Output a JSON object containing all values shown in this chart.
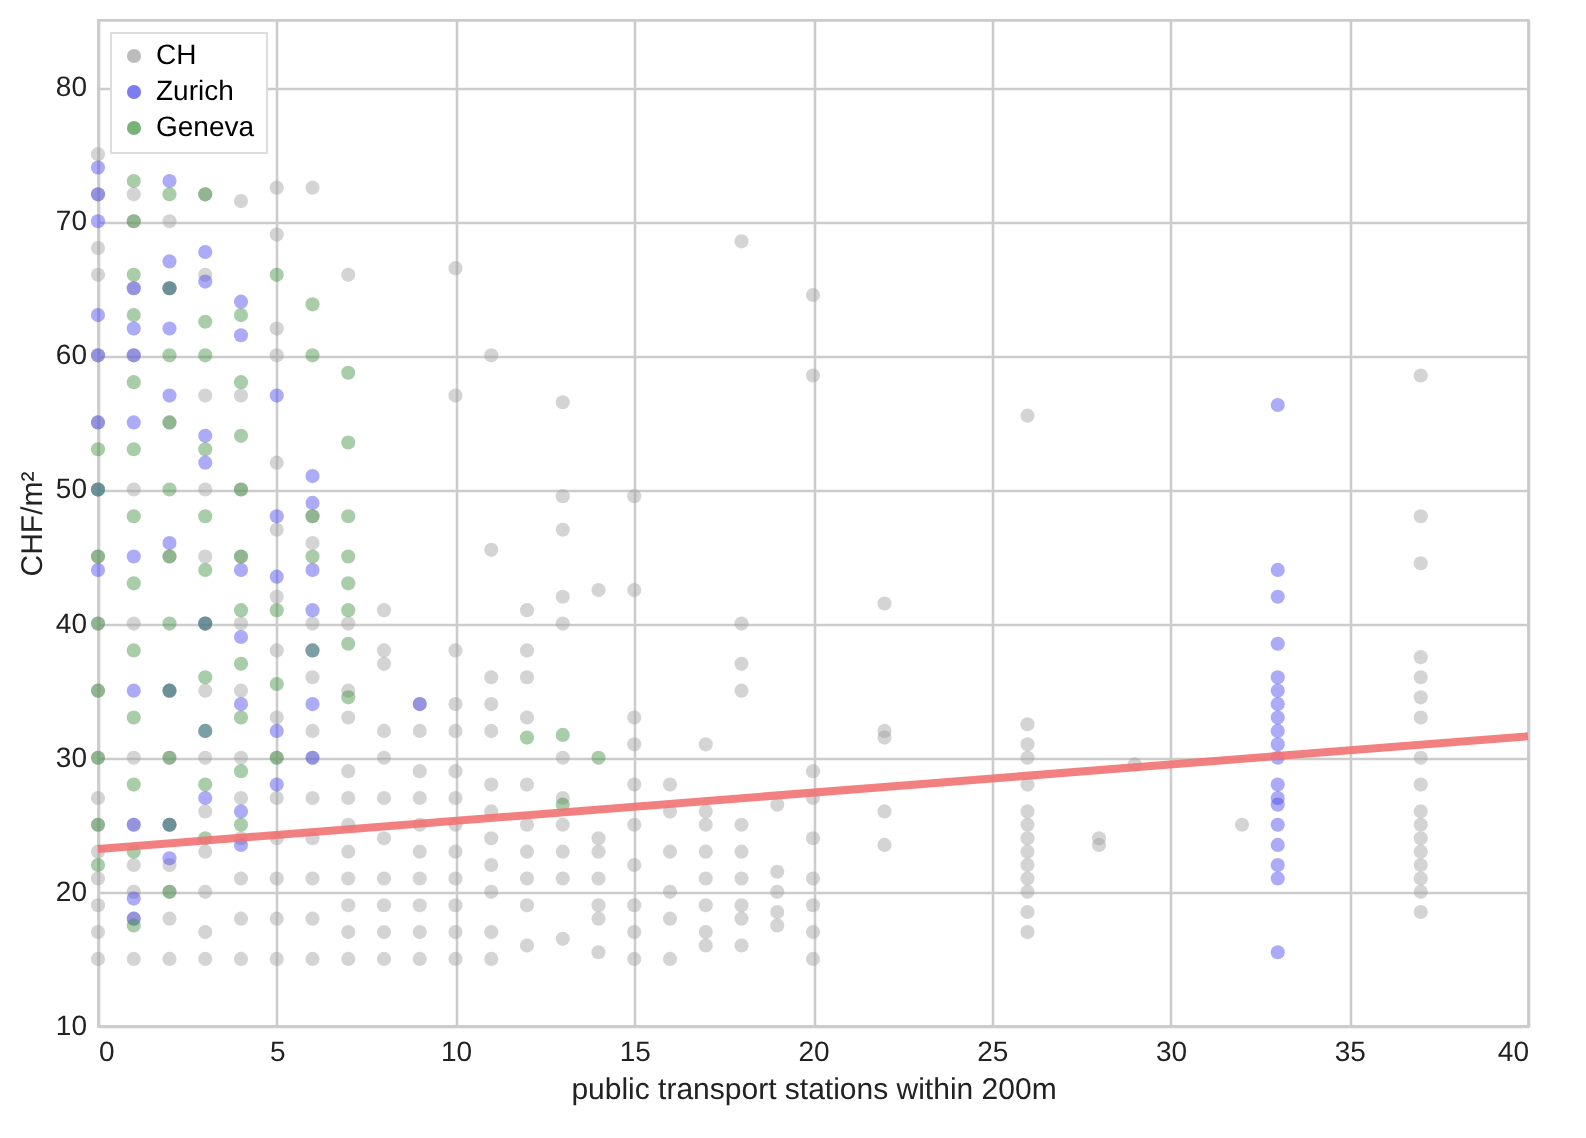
{
  "chart_data": {
    "type": "scatter",
    "xlabel": "public transport stations within 200m",
    "ylabel": "CHF/m²",
    "xlim": [
      0,
      40
    ],
    "ylim": [
      10,
      85
    ],
    "xticks": [
      0,
      5,
      10,
      15,
      20,
      25,
      30,
      35,
      40
    ],
    "yticks": [
      10,
      20,
      30,
      40,
      50,
      60,
      70,
      80
    ],
    "grid": true,
    "legend": "top left",
    "marker": "circle",
    "series": [
      {
        "name": "CH",
        "color": "#a0a0a0",
        "x": [
          0,
          0,
          0,
          0,
          0,
          0,
          0,
          0,
          0,
          0,
          0,
          0,
          0,
          0,
          0,
          0,
          0,
          0,
          1,
          1,
          1,
          1,
          1,
          1,
          1,
          1,
          1,
          1,
          1,
          1,
          2,
          2,
          2,
          2,
          2,
          2,
          2,
          2,
          2,
          2,
          2,
          3,
          3,
          3,
          3,
          3,
          3,
          3,
          3,
          3,
          3,
          3,
          3,
          3,
          4,
          4,
          4,
          4,
          4,
          4,
          4,
          4,
          4,
          4,
          4,
          4,
          5,
          5,
          5,
          5,
          5,
          5,
          5,
          5,
          5,
          5,
          5,
          5,
          5,
          5,
          5,
          6,
          6,
          6,
          6,
          6,
          6,
          6,
          6,
          6,
          6,
          6,
          6,
          7,
          7,
          7,
          7,
          7,
          7,
          7,
          7,
          7,
          7,
          7,
          7,
          8,
          8,
          8,
          8,
          8,
          8,
          8,
          8,
          8,
          8,
          8,
          9,
          9,
          9,
          9,
          9,
          9,
          9,
          9,
          9,
          9,
          10,
          10,
          10,
          10,
          10,
          10,
          10,
          10,
          10,
          10,
          10,
          10,
          10,
          11,
          11,
          11,
          11,
          11,
          11,
          11,
          11,
          11,
          11,
          11,
          11,
          12,
          12,
          12,
          12,
          12,
          12,
          12,
          12,
          12,
          12,
          13,
          13,
          13,
          13,
          13,
          13,
          13,
          13,
          13,
          13,
          13,
          14,
          14,
          14,
          14,
          14,
          14,
          14,
          15,
          15,
          15,
          15,
          15,
          15,
          15,
          15,
          15,
          15,
          16,
          16,
          16,
          16,
          16,
          16,
          17,
          17,
          17,
          17,
          17,
          17,
          17,
          17,
          18,
          18,
          18,
          18,
          18,
          18,
          18,
          18,
          18,
          18,
          19,
          19,
          19,
          19,
          19,
          20,
          20,
          20,
          20,
          20,
          20,
          20,
          20,
          20,
          22,
          22,
          22,
          22,
          22,
          26,
          26,
          26,
          26,
          26,
          26,
          26,
          26,
          26,
          26,
          26,
          26,
          26,
          26,
          28,
          28,
          29,
          32,
          37,
          37,
          37,
          37,
          37,
          37,
          37,
          37,
          37,
          37,
          37,
          37,
          37,
          37,
          37,
          37,
          37
        ],
        "values": [
          15,
          17,
          19,
          21,
          23,
          25,
          27,
          30,
          35,
          40,
          45,
          50,
          55,
          60,
          66,
          68,
          72,
          75,
          15,
          18,
          20,
          22,
          25,
          30,
          40,
          50,
          60,
          65,
          70,
          72,
          15,
          18,
          20,
          22,
          25,
          30,
          35,
          45,
          55,
          65,
          70,
          15,
          17,
          20,
          23,
          26,
          30,
          35,
          40,
          45,
          50,
          57,
          66,
          72,
          15,
          18,
          21,
          24,
          27,
          30,
          35,
          40,
          45,
          50,
          57,
          71.5,
          15,
          18,
          21,
          24,
          27,
          30,
          33,
          38,
          42,
          47,
          52,
          60,
          62,
          69,
          72.5,
          15,
          18,
          21,
          24,
          27,
          30,
          32,
          36,
          40,
          46,
          48,
          72.5,
          15,
          17,
          19,
          21,
          23,
          25,
          27,
          29,
          33,
          35,
          40,
          66,
          15,
          17,
          19,
          21,
          24,
          27,
          30,
          32,
          37,
          38,
          41,
          15,
          17,
          19,
          21,
          23,
          25,
          27,
          29,
          32,
          34,
          15,
          17,
          19,
          21,
          23,
          25,
          27,
          29,
          32,
          34,
          38,
          57,
          66.5,
          15,
          17,
          20,
          22,
          24,
          26,
          28,
          32,
          34,
          36,
          45.5,
          60,
          16,
          19,
          21,
          23,
          25,
          28,
          33,
          36,
          38,
          41,
          16.5,
          21,
          23,
          25,
          27,
          30,
          40,
          42,
          47,
          49.5,
          56.5,
          15.5,
          18,
          19,
          21,
          23,
          24,
          42.5,
          15,
          17,
          19,
          22,
          25,
          28,
          31,
          33,
          42.5,
          49.5,
          15,
          18,
          20,
          23,
          26,
          28,
          16,
          17,
          19,
          21,
          23,
          25,
          26,
          31,
          16,
          18,
          19,
          21,
          23,
          25,
          35,
          37,
          40,
          68.5,
          17.5,
          18.5,
          20,
          21.5,
          26.5,
          15,
          17,
          19,
          21,
          24,
          27,
          29,
          58.5,
          64.5,
          23.5,
          26,
          31.5,
          32,
          41.5,
          17,
          18.5,
          20,
          21,
          22,
          23,
          24,
          25,
          26,
          28,
          30,
          31,
          32.5,
          55.5,
          23.5,
          24,
          29.5,
          25,
          18.5,
          20,
          21,
          22,
          23,
          24,
          25,
          26,
          28,
          30,
          33,
          34.5,
          36,
          37.5,
          44.5,
          48,
          58.5
        ]
      },
      {
        "name": "Zurich",
        "color": "#4545ee",
        "x": [
          0,
          0,
          0,
          0,
          0,
          0,
          0,
          0,
          1,
          1,
          1,
          1,
          1,
          1,
          1,
          1,
          1,
          2,
          2,
          2,
          2,
          2,
          2,
          2,
          2,
          2,
          3,
          3,
          3,
          3,
          3,
          3,
          3,
          4,
          4,
          4,
          4,
          4,
          4,
          4,
          5,
          5,
          5,
          5,
          5,
          6,
          6,
          6,
          6,
          6,
          6,
          6,
          9,
          33,
          33,
          33,
          33,
          33,
          33,
          33,
          33,
          33,
          33,
          33,
          33,
          33,
          33,
          33,
          33,
          33,
          33,
          33
        ],
        "values": [
          44,
          50,
          55,
          60,
          63,
          70,
          72,
          74,
          18,
          19.5,
          25,
          35,
          45,
          55,
          60,
          62,
          65,
          22.5,
          25,
          35,
          46,
          57,
          62,
          65,
          67,
          73,
          27,
          32,
          40,
          52,
          54,
          65.5,
          67.7,
          23.5,
          26,
          34,
          39,
          44,
          61.5,
          64,
          28,
          32,
          43.5,
          48,
          57,
          30,
          34,
          38,
          41,
          44,
          49,
          51,
          34,
          15.5,
          21,
          22,
          23.5,
          25,
          26.5,
          27,
          28,
          30,
          31,
          32,
          33,
          34,
          35,
          36,
          38.5,
          42,
          44,
          56.3
        ]
      },
      {
        "name": "Geneva",
        "color": "#3f913f",
        "x": [
          0,
          0,
          0,
          0,
          0,
          0,
          0,
          0,
          1,
          1,
          1,
          1,
          1,
          1,
          1,
          1,
          1,
          1,
          1,
          1,
          1,
          2,
          2,
          2,
          2,
          2,
          2,
          2,
          2,
          2,
          2,
          2,
          3,
          3,
          3,
          3,
          3,
          3,
          3,
          3,
          3,
          3,
          3,
          4,
          4,
          4,
          4,
          4,
          4,
          4,
          4,
          4,
          4,
          5,
          5,
          5,
          5,
          6,
          6,
          6,
          6,
          6,
          7,
          7,
          7,
          7,
          7,
          7,
          7,
          7,
          12,
          13,
          13,
          14
        ],
        "values": [
          22,
          25,
          30,
          35,
          40,
          45,
          50,
          53,
          17.5,
          23,
          28,
          33,
          38,
          43,
          48,
          53,
          58,
          63,
          66,
          70,
          73,
          20,
          25,
          30,
          35,
          40,
          45,
          50,
          55,
          60,
          65,
          72,
          24,
          28,
          32,
          36,
          40,
          44,
          48,
          53,
          60,
          62.5,
          72,
          25,
          29,
          33,
          37,
          41,
          45,
          50,
          54,
          58,
          63,
          30,
          35.5,
          41,
          66,
          38,
          45,
          48,
          60,
          63.8,
          34.5,
          38.5,
          41,
          43,
          45,
          48,
          53.5,
          58.7,
          31.5,
          26.5,
          31.7,
          30
        ]
      },
      {
        "type": "line",
        "marker": "none",
        "color": "#f27272",
        "x": [
          0,
          40
        ],
        "values": [
          23.2,
          31.6
        ]
      }
    ]
  }
}
